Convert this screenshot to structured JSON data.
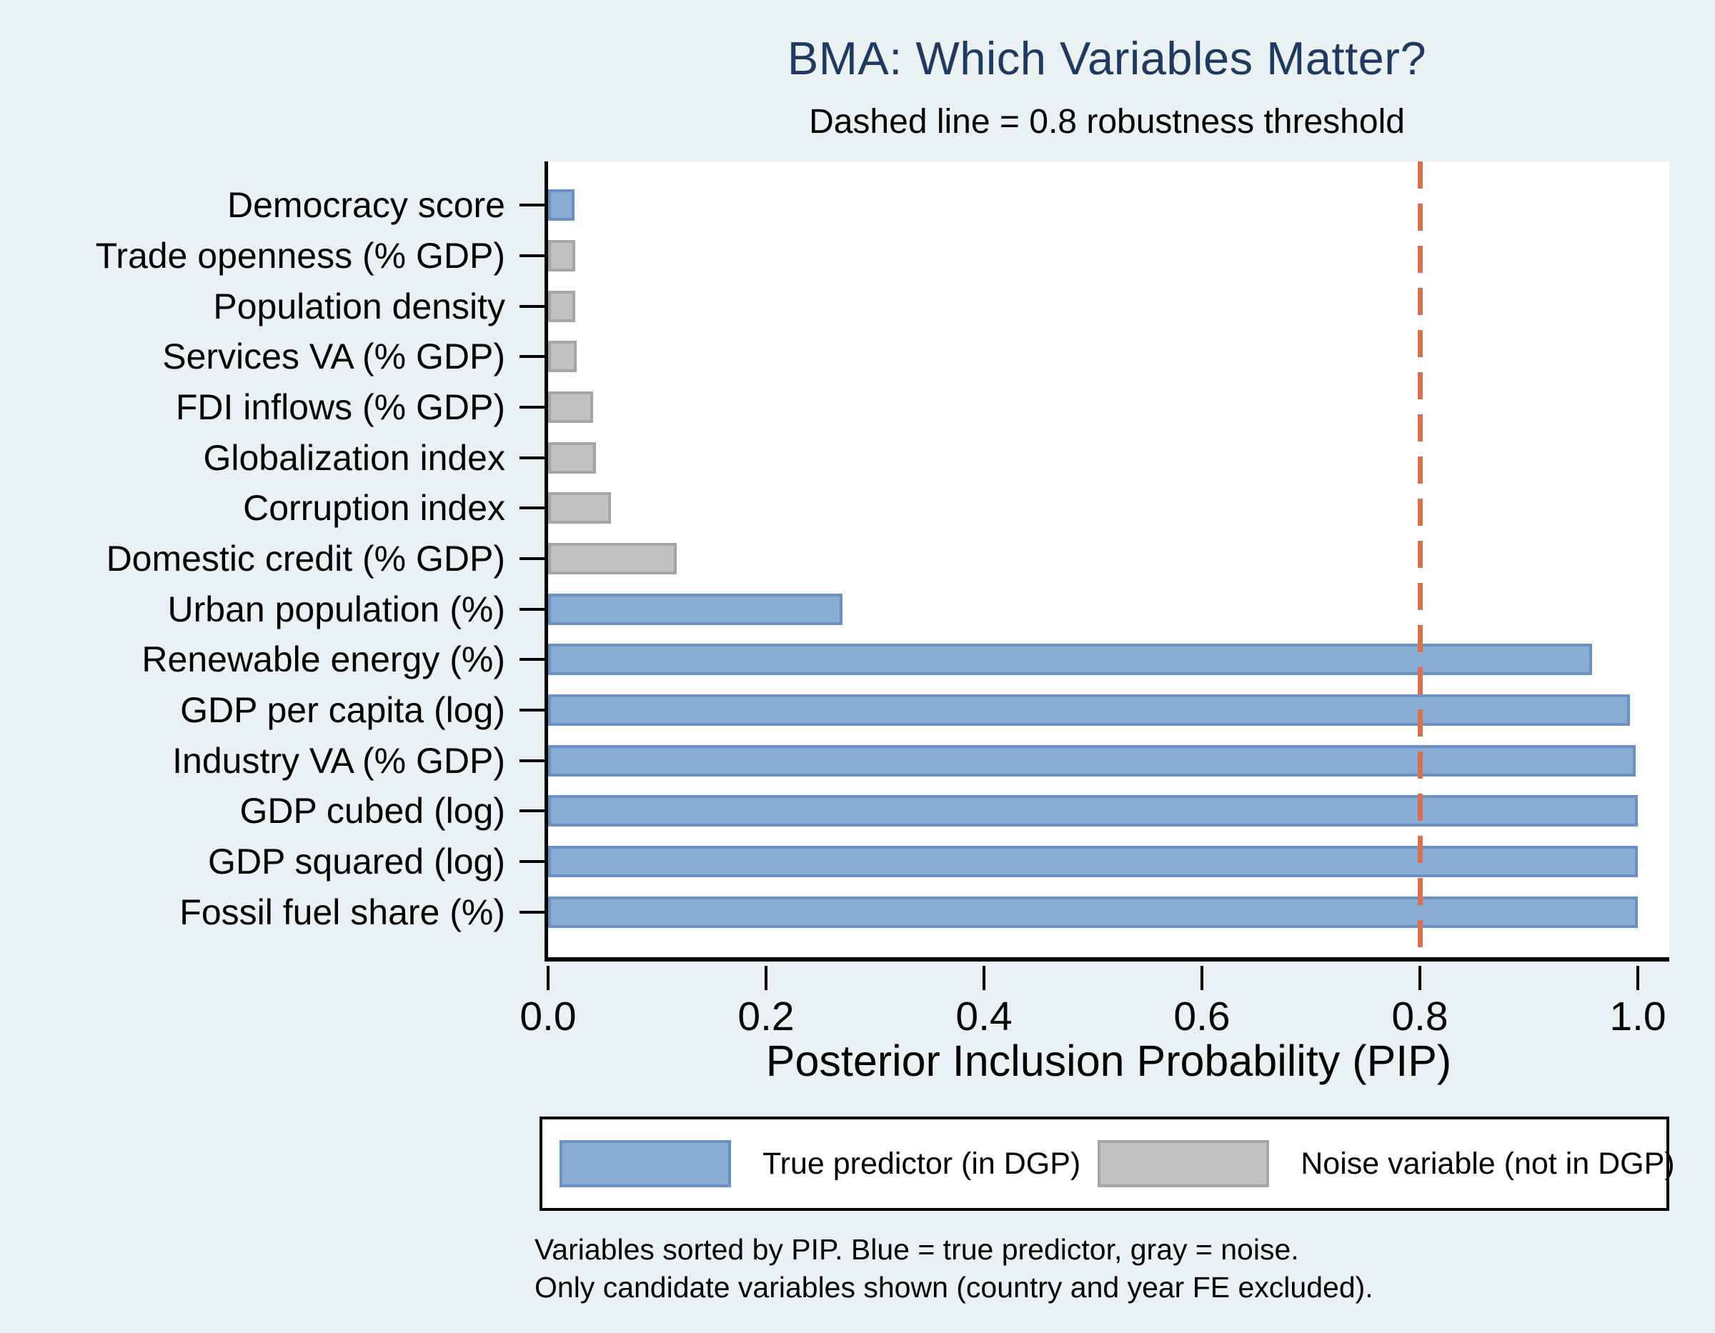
{
  "page": {
    "background": "#EAF1F3"
  },
  "header": {
    "title": "BMA: Which Variables Matter?",
    "subtitle": "Dashed line = 0.8 robustness threshold",
    "title_color": "#1F3A60"
  },
  "chart_data": {
    "type": "bar",
    "orientation": "horizontal",
    "title": "BMA: Which Variables Matter?",
    "subtitle": "Dashed line = 0.8 robustness threshold",
    "xlabel": "Posterior Inclusion Probability (PIP)",
    "xlim": [
      0,
      1.03
    ],
    "x_tick_values": [
      0.0,
      0.2,
      0.4,
      0.6,
      0.8,
      1.0
    ],
    "x_tick_labels": [
      "0.0",
      "0.2",
      "0.4",
      "0.6",
      "0.8",
      "1.0"
    ],
    "grid": false,
    "plot_background": "#FFFFFF",
    "threshold": {
      "value": 0.8,
      "style": "dashed",
      "color": "#D9714E",
      "meaning": "0.8 robustness threshold"
    },
    "bars": [
      {
        "label": "Democracy score",
        "value": 0.024,
        "role": "true_predictor"
      },
      {
        "label": "Trade openness (% GDP)",
        "value": 0.025,
        "role": "noise"
      },
      {
        "label": "Population density",
        "value": 0.025,
        "role": "noise"
      },
      {
        "label": "Services VA (% GDP)",
        "value": 0.026,
        "role": "noise"
      },
      {
        "label": "FDI inflows (% GDP)",
        "value": 0.041,
        "role": "noise"
      },
      {
        "label": "Globalization index",
        "value": 0.044,
        "role": "noise"
      },
      {
        "label": "Corruption index",
        "value": 0.058,
        "role": "noise"
      },
      {
        "label": "Domestic credit (% GDP)",
        "value": 0.118,
        "role": "noise"
      },
      {
        "label": "Urban population (%)",
        "value": 0.27,
        "role": "true_predictor"
      },
      {
        "label": "Renewable energy (%)",
        "value": 0.958,
        "role": "true_predictor"
      },
      {
        "label": "GDP per capita (log)",
        "value": 0.993,
        "role": "true_predictor"
      },
      {
        "label": "Industry VA (% GDP)",
        "value": 0.998,
        "role": "true_predictor"
      },
      {
        "label": "GDP cubed (log)",
        "value": 1.0,
        "role": "true_predictor"
      },
      {
        "label": "GDP squared (log)",
        "value": 1.0,
        "role": "true_predictor"
      },
      {
        "label": "Fossil fuel share (%)",
        "value": 1.0,
        "role": "true_predictor"
      }
    ],
    "colors": {
      "true_predictor_fill": "#8AABD4",
      "true_predictor_edge": "#6890C0",
      "noise_fill": "#C1C1C1",
      "noise_edge": "#A5A5A5"
    }
  },
  "legend": {
    "items": [
      {
        "label": "True predictor (in DGP)",
        "swatch_role": "true_predictor"
      },
      {
        "label": "Noise variable (not in DGP)",
        "swatch_role": "noise"
      }
    ]
  },
  "notes": {
    "line1": "Variables sorted by PIP. Blue = true predictor, gray = noise.",
    "line2": "Only candidate variables shown (country and year FE excluded)."
  }
}
